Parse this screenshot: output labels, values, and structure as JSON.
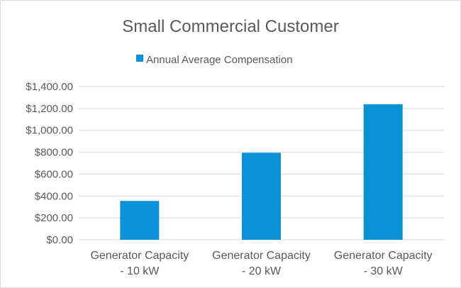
{
  "chart_data": {
    "type": "bar",
    "title": "Small Commercial Customer",
    "categories": [
      [
        "Generator Capacity",
        "- 10 kW"
      ],
      [
        "Generator Capacity",
        "- 20 kW"
      ],
      [
        "Generator Capacity",
        "- 30 kW"
      ]
    ],
    "series": [
      {
        "name": "Annual Average Compensation",
        "values": [
          355,
          795,
          1238
        ]
      }
    ],
    "ylim": [
      0,
      1400
    ],
    "ytick_step": 200,
    "ytick_labels": [
      "$0.00",
      "$200.00",
      "$400.00",
      "$600.00",
      "$800.00",
      "$1,000.00",
      "$1,200.00",
      "$1,400.00"
    ],
    "xlabel": "",
    "ylabel": "",
    "grid": true,
    "legend_position": "top",
    "colors": {
      "bar": "#0a91d6",
      "grid": "#d9d9d9",
      "text": "#595959"
    }
  }
}
